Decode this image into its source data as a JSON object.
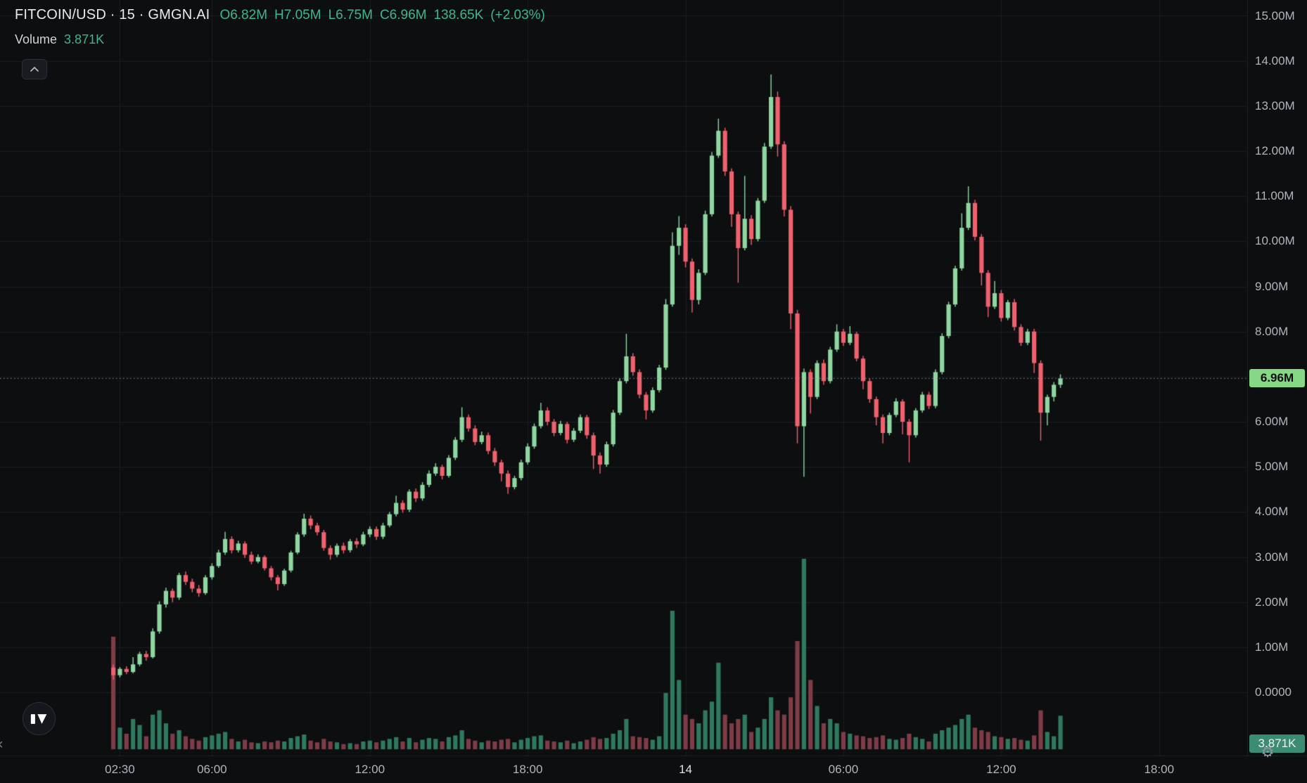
{
  "header": {
    "symbol_title": "FITCOIN/USD · 15 · GMGN.AI",
    "ohlc": {
      "o": "O6.82M",
      "h": "H7.05M",
      "l": "L6.75M",
      "c": "C6.96M",
      "chg_abs": "138.65K",
      "chg_pct": "(+2.03%)"
    },
    "volume_row": {
      "label": "Volume",
      "value": "3.871K"
    }
  },
  "badges": {
    "price": "6.96M",
    "volume": "3.871K"
  },
  "colors": {
    "background": "#0c0e10",
    "grid": "#1a1e23",
    "up": "#8fd7a0",
    "down": "#f0616d",
    "volume_up": "#2f7a5e",
    "volume_down": "#7e3c46",
    "accent_text": "#3fb68f",
    "axis_text": "#b2b5be",
    "title_text": "#e8eaed",
    "price_badge_bg": "#85d985",
    "volume_badge_bg": "#3a8d74",
    "price_line": "#9aa0aa"
  },
  "chart_data": {
    "type": "candlestick",
    "title": "FITCOIN/USD",
    "interval": "15",
    "source": "GMGN.AI",
    "last_close": "6.96M",
    "last_volume": "3.871K",
    "price_unit": "M",
    "volume_unit": "K",
    "ylim": [
      0,
      15
    ],
    "grid": true,
    "price_ticks": [
      {
        "label": "15.00M",
        "value": 15
      },
      {
        "label": "14.00M",
        "value": 14
      },
      {
        "label": "13.00M",
        "value": 13
      },
      {
        "label": "12.00M",
        "value": 12
      },
      {
        "label": "11.00M",
        "value": 11
      },
      {
        "label": "10.00M",
        "value": 10
      },
      {
        "label": "9.00M",
        "value": 9
      },
      {
        "label": "8.00M",
        "value": 8
      },
      {
        "label": "6.00M",
        "value": 6
      },
      {
        "label": "5.00M",
        "value": 5
      },
      {
        "label": "4.00M",
        "value": 4
      },
      {
        "label": "3.00M",
        "value": 3
      },
      {
        "label": "2.00M",
        "value": 2
      },
      {
        "label": "1.00M",
        "value": 1
      },
      {
        "label": "0.0000",
        "value": 0
      }
    ],
    "time_ticks": [
      {
        "label": "02:30",
        "index": 1,
        "emphasis": false
      },
      {
        "label": "06:00",
        "index": 15,
        "emphasis": false
      },
      {
        "label": "12:00",
        "index": 39,
        "emphasis": false
      },
      {
        "label": "18:00",
        "index": 63,
        "emphasis": false
      },
      {
        "label": "14",
        "index": 87,
        "emphasis": true
      },
      {
        "label": "06:00",
        "index": 111,
        "emphasis": false
      },
      {
        "label": "12:00",
        "index": 135,
        "emphasis": false
      },
      {
        "label": "18:00",
        "index": 159,
        "emphasis": false
      }
    ],
    "candles_format": [
      "open",
      "high",
      "low",
      "close",
      "volume_K"
    ],
    "candles": [
      [
        0.55,
        0.62,
        0.28,
        0.38,
        13.0
      ],
      [
        0.38,
        0.56,
        0.33,
        0.52,
        2.5
      ],
      [
        0.52,
        0.58,
        0.4,
        0.45,
        1.8
      ],
      [
        0.45,
        0.78,
        0.42,
        0.62,
        3.5
      ],
      [
        0.62,
        0.9,
        0.58,
        0.85,
        2.8
      ],
      [
        0.85,
        0.92,
        0.7,
        0.78,
        1.5
      ],
      [
        0.78,
        1.42,
        0.75,
        1.35,
        4.0
      ],
      [
        1.35,
        2.02,
        1.3,
        1.95,
        4.5
      ],
      [
        1.95,
        2.32,
        1.88,
        2.25,
        3.0
      ],
      [
        2.25,
        2.3,
        2.0,
        2.1,
        1.8
      ],
      [
        2.1,
        2.65,
        2.05,
        2.6,
        2.2
      ],
      [
        2.6,
        2.68,
        2.38,
        2.45,
        1.5
      ],
      [
        2.45,
        2.52,
        2.22,
        2.3,
        1.2
      ],
      [
        2.3,
        2.38,
        2.12,
        2.2,
        1.0
      ],
      [
        2.2,
        2.6,
        2.16,
        2.55,
        1.4
      ],
      [
        2.55,
        2.86,
        2.5,
        2.8,
        1.6
      ],
      [
        2.8,
        3.16,
        2.76,
        3.1,
        1.8
      ],
      [
        3.1,
        3.56,
        3.05,
        3.4,
        2.0
      ],
      [
        3.4,
        3.46,
        3.08,
        3.15,
        1.2
      ],
      [
        3.15,
        3.36,
        3.1,
        3.3,
        0.9
      ],
      [
        3.3,
        3.35,
        2.98,
        3.05,
        1.1
      ],
      [
        3.05,
        3.12,
        2.84,
        2.9,
        0.8
      ],
      [
        2.9,
        3.06,
        2.86,
        3.0,
        0.7
      ],
      [
        3.0,
        3.04,
        2.7,
        2.75,
        0.9
      ],
      [
        2.75,
        2.8,
        2.48,
        2.55,
        0.8
      ],
      [
        2.55,
        2.6,
        2.26,
        2.4,
        1.0
      ],
      [
        2.4,
        2.74,
        2.36,
        2.7,
        0.9
      ],
      [
        2.7,
        3.14,
        2.66,
        3.1,
        1.3
      ],
      [
        3.1,
        3.55,
        3.06,
        3.5,
        1.5
      ],
      [
        3.5,
        3.96,
        3.45,
        3.85,
        1.7
      ],
      [
        3.85,
        3.92,
        3.62,
        3.7,
        1.0
      ],
      [
        3.7,
        3.76,
        3.48,
        3.55,
        0.8
      ],
      [
        3.55,
        3.6,
        3.14,
        3.2,
        1.2
      ],
      [
        3.2,
        3.26,
        2.94,
        3.05,
        0.9
      ],
      [
        3.05,
        3.3,
        3.0,
        3.25,
        0.8
      ],
      [
        3.25,
        3.32,
        3.08,
        3.15,
        0.6
      ],
      [
        3.15,
        3.4,
        3.1,
        3.35,
        0.7
      ],
      [
        3.35,
        3.42,
        3.2,
        3.28,
        0.6
      ],
      [
        3.28,
        3.56,
        3.24,
        3.5,
        0.9
      ],
      [
        3.5,
        3.68,
        3.44,
        3.62,
        1.0
      ],
      [
        3.62,
        3.68,
        3.38,
        3.45,
        0.8
      ],
      [
        3.45,
        3.76,
        3.4,
        3.7,
        1.0
      ],
      [
        3.7,
        4.0,
        3.66,
        3.95,
        1.2
      ],
      [
        3.95,
        4.36,
        3.9,
        4.2,
        1.4
      ],
      [
        4.2,
        4.26,
        3.98,
        4.05,
        0.9
      ],
      [
        4.05,
        4.5,
        4.0,
        4.45,
        1.3
      ],
      [
        4.45,
        4.52,
        4.22,
        4.3,
        0.8
      ],
      [
        4.3,
        4.66,
        4.25,
        4.6,
        1.1
      ],
      [
        4.6,
        4.92,
        4.55,
        4.85,
        1.3
      ],
      [
        4.85,
        5.08,
        4.8,
        5.0,
        1.2
      ],
      [
        5.0,
        5.05,
        4.72,
        4.8,
        0.9
      ],
      [
        4.8,
        5.26,
        4.76,
        5.2,
        1.4
      ],
      [
        5.2,
        5.66,
        5.15,
        5.6,
        1.6
      ],
      [
        5.6,
        6.32,
        5.55,
        6.1,
        2.2
      ],
      [
        6.1,
        6.16,
        5.78,
        5.85,
        1.2
      ],
      [
        5.85,
        5.92,
        5.48,
        5.55,
        1.0
      ],
      [
        5.55,
        5.78,
        5.5,
        5.7,
        0.8
      ],
      [
        5.7,
        5.76,
        5.28,
        5.35,
        1.0
      ],
      [
        5.35,
        5.42,
        5.02,
        5.1,
        0.9
      ],
      [
        5.1,
        5.16,
        4.68,
        4.85,
        1.1
      ],
      [
        4.85,
        4.92,
        4.4,
        4.55,
        1.2
      ],
      [
        4.55,
        4.8,
        4.5,
        4.75,
        0.8
      ],
      [
        4.75,
        5.16,
        4.7,
        5.1,
        1.1
      ],
      [
        5.1,
        5.52,
        5.05,
        5.45,
        1.3
      ],
      [
        5.45,
        5.96,
        5.4,
        5.9,
        1.5
      ],
      [
        5.9,
        6.42,
        5.85,
        6.25,
        1.6
      ],
      [
        6.25,
        6.32,
        5.92,
        6.0,
        1.0
      ],
      [
        6.0,
        6.06,
        5.68,
        5.75,
        0.9
      ],
      [
        5.75,
        6.02,
        5.7,
        5.95,
        0.8
      ],
      [
        5.95,
        6.0,
        5.52,
        5.6,
        1.0
      ],
      [
        5.6,
        5.86,
        5.55,
        5.8,
        0.7
      ],
      [
        5.8,
        6.16,
        5.75,
        6.1,
        0.9
      ],
      [
        6.1,
        6.15,
        5.62,
        5.7,
        1.1
      ],
      [
        5.7,
        5.76,
        4.95,
        5.25,
        1.4
      ],
      [
        5.25,
        5.32,
        4.85,
        5.05,
        1.2
      ],
      [
        5.05,
        5.56,
        5.0,
        5.5,
        1.3
      ],
      [
        5.5,
        6.26,
        5.45,
        6.2,
        1.8
      ],
      [
        6.2,
        6.96,
        6.15,
        6.9,
        2.2
      ],
      [
        6.9,
        7.95,
        6.85,
        7.45,
        3.5
      ],
      [
        7.45,
        7.52,
        7.02,
        7.1,
        1.5
      ],
      [
        7.1,
        7.16,
        6.52,
        6.6,
        1.4
      ],
      [
        6.6,
        6.66,
        6.05,
        6.25,
        1.3
      ],
      [
        6.25,
        6.76,
        6.2,
        6.7,
        1.1
      ],
      [
        6.7,
        7.26,
        6.65,
        7.2,
        1.5
      ],
      [
        7.2,
        8.72,
        7.15,
        8.6,
        6.5
      ],
      [
        8.6,
        10.2,
        8.55,
        9.9,
        16.0
      ],
      [
        9.9,
        10.56,
        9.7,
        10.3,
        8.0
      ],
      [
        10.3,
        10.38,
        9.42,
        9.55,
        4.0
      ],
      [
        9.55,
        9.62,
        8.42,
        8.7,
        3.5
      ],
      [
        8.7,
        9.38,
        8.6,
        9.3,
        3.0
      ],
      [
        9.3,
        10.68,
        9.25,
        10.6,
        4.5
      ],
      [
        10.6,
        11.98,
        10.55,
        11.9,
        5.5
      ],
      [
        11.9,
        12.72,
        11.85,
        12.45,
        10.0
      ],
      [
        12.45,
        12.52,
        11.45,
        11.55,
        4.0
      ],
      [
        11.55,
        11.62,
        10.32,
        10.6,
        3.0
      ],
      [
        10.6,
        10.66,
        9.08,
        9.85,
        3.5
      ],
      [
        9.85,
        11.45,
        9.8,
        10.5,
        4.0
      ],
      [
        10.5,
        10.58,
        9.92,
        10.05,
        2.0
      ],
      [
        10.05,
        10.96,
        10.0,
        10.9,
        2.5
      ],
      [
        10.9,
        12.18,
        10.85,
        12.1,
        3.5
      ],
      [
        12.1,
        13.7,
        12.05,
        13.2,
        6.0
      ],
      [
        13.2,
        13.32,
        11.88,
        12.15,
        4.5
      ],
      [
        12.15,
        12.22,
        10.55,
        10.7,
        4.0
      ],
      [
        10.7,
        10.78,
        8.05,
        8.4,
        6.0
      ],
      [
        8.4,
        8.48,
        5.52,
        5.9,
        12.5
      ],
      [
        5.9,
        7.18,
        4.78,
        7.1,
        22.0
      ],
      [
        7.1,
        7.16,
        6.18,
        6.55,
        8.0
      ],
      [
        6.55,
        7.36,
        6.5,
        7.3,
        5.0
      ],
      [
        7.3,
        7.38,
        6.82,
        6.9,
        3.0
      ],
      [
        6.9,
        7.66,
        6.85,
        7.6,
        3.5
      ],
      [
        7.6,
        8.16,
        7.55,
        8.0,
        3.0
      ],
      [
        8.0,
        8.06,
        7.68,
        7.75,
        2.0
      ],
      [
        7.75,
        8.12,
        7.7,
        7.95,
        1.8
      ],
      [
        7.95,
        8.0,
        7.34,
        7.4,
        1.6
      ],
      [
        7.4,
        7.46,
        6.72,
        6.9,
        1.5
      ],
      [
        6.9,
        6.96,
        6.42,
        6.5,
        1.3
      ],
      [
        6.5,
        6.56,
        5.92,
        6.1,
        1.4
      ],
      [
        6.1,
        6.16,
        5.52,
        5.75,
        1.6
      ],
      [
        5.75,
        6.2,
        5.7,
        6.15,
        1.2
      ],
      [
        6.15,
        6.52,
        6.1,
        6.45,
        1.1
      ],
      [
        6.45,
        6.5,
        5.72,
        6.0,
        1.3
      ],
      [
        6.0,
        6.06,
        5.1,
        5.7,
        1.8
      ],
      [
        5.7,
        6.3,
        5.65,
        6.25,
        1.4
      ],
      [
        6.25,
        6.66,
        6.2,
        6.6,
        1.2
      ],
      [
        6.6,
        6.66,
        6.28,
        6.35,
        0.9
      ],
      [
        6.35,
        7.16,
        6.3,
        7.1,
        1.8
      ],
      [
        7.1,
        7.96,
        7.05,
        7.9,
        2.2
      ],
      [
        7.9,
        8.66,
        7.85,
        8.6,
        2.5
      ],
      [
        8.6,
        9.46,
        8.55,
        9.4,
        2.8
      ],
      [
        9.4,
        10.62,
        9.35,
        10.3,
        3.5
      ],
      [
        10.3,
        11.22,
        10.25,
        10.85,
        4.0
      ],
      [
        10.85,
        10.92,
        10.02,
        10.1,
        2.5
      ],
      [
        10.1,
        10.16,
        9.02,
        9.3,
        2.2
      ],
      [
        9.3,
        9.36,
        8.32,
        8.55,
        2.0
      ],
      [
        8.55,
        9.12,
        8.5,
        8.85,
        1.5
      ],
      [
        8.85,
        8.92,
        8.22,
        8.3,
        1.4
      ],
      [
        8.3,
        8.7,
        8.25,
        8.65,
        1.2
      ],
      [
        8.65,
        8.72,
        8.02,
        8.1,
        1.3
      ],
      [
        8.1,
        8.16,
        7.68,
        7.75,
        1.1
      ],
      [
        7.75,
        8.06,
        7.7,
        8.0,
        1.0
      ],
      [
        8.0,
        8.06,
        7.08,
        7.3,
        1.6
      ],
      [
        7.3,
        7.36,
        5.58,
        6.2,
        4.5
      ],
      [
        6.2,
        6.6,
        5.92,
        6.55,
        2.0
      ],
      [
        6.55,
        6.88,
        6.45,
        6.82,
        1.5
      ],
      [
        6.82,
        7.05,
        6.75,
        6.96,
        3.871
      ]
    ],
    "price_line_value": 6.96
  }
}
